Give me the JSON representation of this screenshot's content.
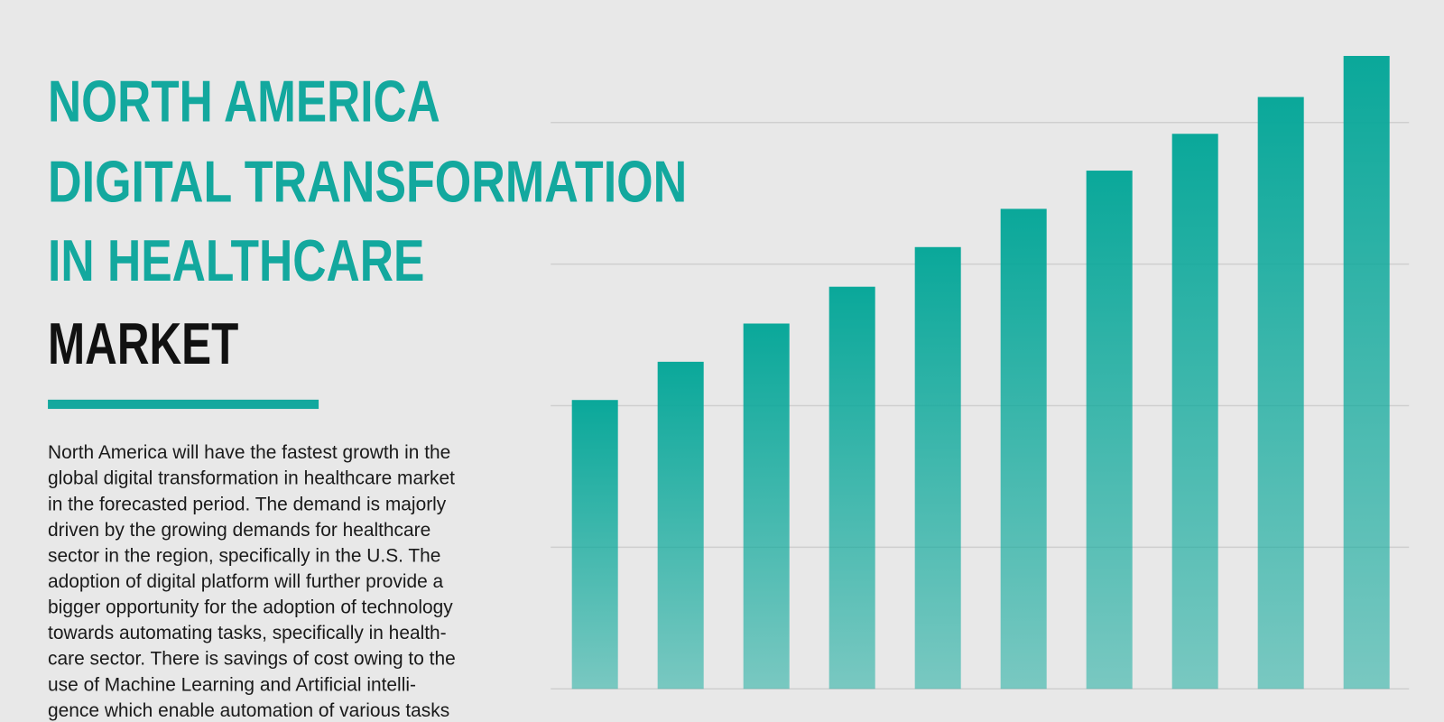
{
  "chart_data": {
    "type": "bar",
    "title": [
      "NORTH AMERICA",
      "DIGITAL TRANSFORMATION",
      "IN HEALTHCARE",
      "MARKET"
    ],
    "description": [
      "North America will have the fastest growth in the",
      "global digital transformation in healthcare market",
      "in the forecasted period. The demand is majorly",
      "driven by the growing demands for healthcare",
      "sector in the region, specifically in the U.S. The",
      "adoption of digital platform will further provide a",
      "bigger opportunity for the adoption of technology",
      "towards automating tasks, specifically in health-",
      "care sector. There is savings of cost owing to the",
      "use of Machine Learning and Artificial intelli-",
      "gence which enable automation of various tasks"
    ],
    "categories": [
      null,
      null,
      null,
      null,
      null,
      null,
      null,
      null,
      null,
      null
    ],
    "values": [
      2.04,
      2.31,
      2.58,
      2.84,
      3.12,
      3.39,
      3.66,
      3.92,
      4.18,
      4.47
    ],
    "color": "#0aa89a",
    "ylim": [
      0,
      4.5
    ],
    "yticks": [
      0,
      1,
      2,
      3,
      4
    ],
    "grid": true
  }
}
